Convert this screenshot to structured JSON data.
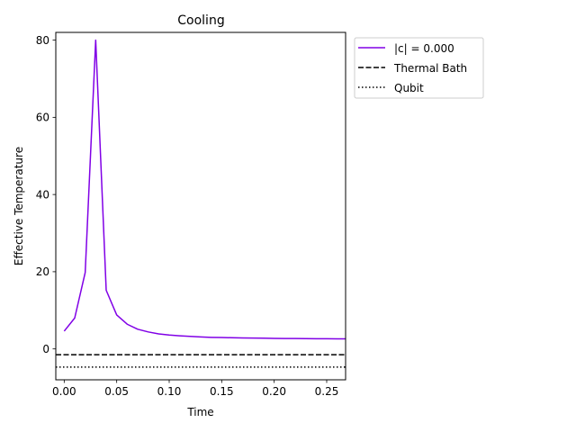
{
  "chart_data": {
    "type": "line",
    "title": "Cooling",
    "xlabel": "Time",
    "ylabel": "Effective Temperature",
    "xlim": [
      -0.008,
      0.268
    ],
    "ylim": [
      -8,
      82
    ],
    "xticks": [
      0.0,
      0.05,
      0.1,
      0.15,
      0.2,
      0.25
    ],
    "xtick_labels": [
      "0.00",
      "0.05",
      "0.10",
      "0.15",
      "0.20",
      "0.25"
    ],
    "yticks": [
      0,
      20,
      40,
      60,
      80
    ],
    "ytick_labels": [
      "0",
      "20",
      "40",
      "60",
      "80"
    ],
    "grid": false,
    "legend_position": "outside-right-top",
    "series": [
      {
        "name": "|c| = 0.000",
        "color": "#8000e6",
        "style": "solid",
        "x": [
          0.0,
          0.01,
          0.02,
          0.03,
          0.04,
          0.05,
          0.06,
          0.07,
          0.08,
          0.09,
          0.1,
          0.11,
          0.12,
          0.13,
          0.14,
          0.15,
          0.16,
          0.17,
          0.18,
          0.19,
          0.2,
          0.21,
          0.22,
          0.23,
          0.24,
          0.25,
          0.26,
          0.268
        ],
        "y": [
          4.6,
          8.0,
          19.8,
          80.0,
          15.2,
          8.8,
          6.4,
          5.1,
          4.4,
          3.9,
          3.6,
          3.4,
          3.25,
          3.1,
          3.0,
          2.95,
          2.9,
          2.85,
          2.8,
          2.77,
          2.74,
          2.71,
          2.69,
          2.67,
          2.65,
          2.63,
          2.62,
          2.61
        ]
      },
      {
        "name": "Thermal Bath",
        "color": "#000000",
        "style": "dashed",
        "x": [
          -0.008,
          0.268
        ],
        "y": [
          -1.5,
          -1.5
        ]
      },
      {
        "name": "Qubit",
        "color": "#000000",
        "style": "dotted",
        "x": [
          -0.008,
          0.268
        ],
        "y": [
          -4.7,
          -4.7
        ]
      }
    ]
  }
}
